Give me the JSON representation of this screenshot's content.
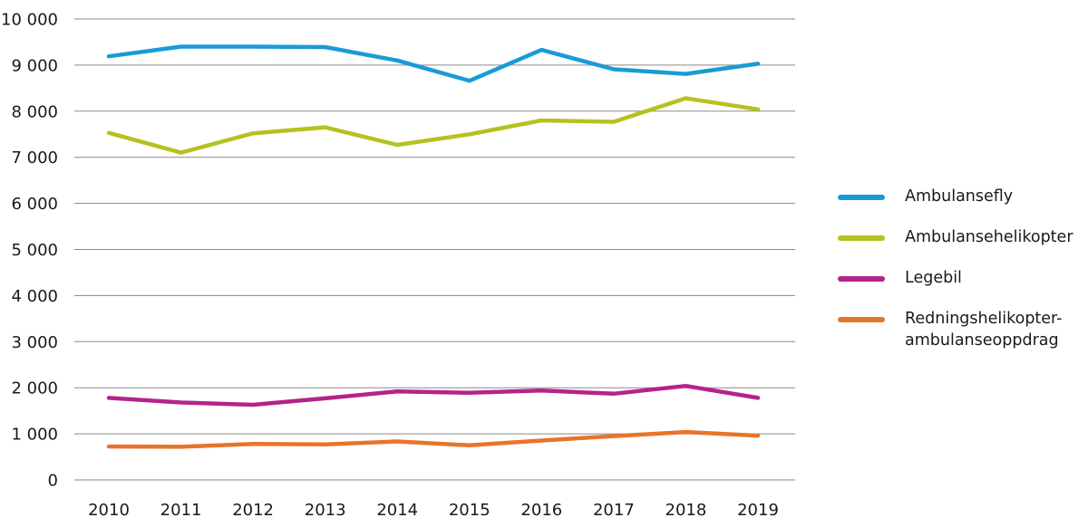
{
  "chart_data": {
    "type": "line",
    "title": "",
    "xlabel": "",
    "ylabel": "",
    "x": [
      "2010",
      "2011",
      "2012",
      "2013",
      "2014",
      "2015",
      "2016",
      "2017",
      "2018",
      "2019"
    ],
    "ylim": [
      0,
      10000
    ],
    "yticks": [
      0,
      1000,
      2000,
      3000,
      4000,
      5000,
      6000,
      7000,
      8000,
      9000,
      10000
    ],
    "ytick_labels": [
      "0",
      "1 000",
      "2 000",
      "3 000",
      "4 000",
      "5 000",
      "6 000",
      "7 000",
      "8 000",
      "9 000",
      "10 000"
    ],
    "grid": true,
    "legend_position": "right",
    "series": [
      {
        "name": "Ambulansefly",
        "color": "#1a9bd7",
        "values": [
          9190,
          9400,
          9400,
          9390,
          9100,
          8660,
          9330,
          8910,
          8810,
          9030
        ]
      },
      {
        "name": "Ambulansehelikopter",
        "color": "#b5c21f",
        "values": [
          7530,
          7100,
          7520,
          7650,
          7270,
          7500,
          7800,
          7770,
          8280,
          8040
        ]
      },
      {
        "name": "Legebil",
        "color": "#b5238a",
        "values": [
          1780,
          1680,
          1630,
          1770,
          1920,
          1890,
          1940,
          1870,
          2040,
          1780
        ]
      },
      {
        "name": "Redningshelikopter-\nambulanseoppdrag",
        "color": "#e8742b",
        "values": [
          725,
          720,
          780,
          770,
          835,
          750,
          855,
          950,
          1040,
          960
        ]
      }
    ]
  }
}
